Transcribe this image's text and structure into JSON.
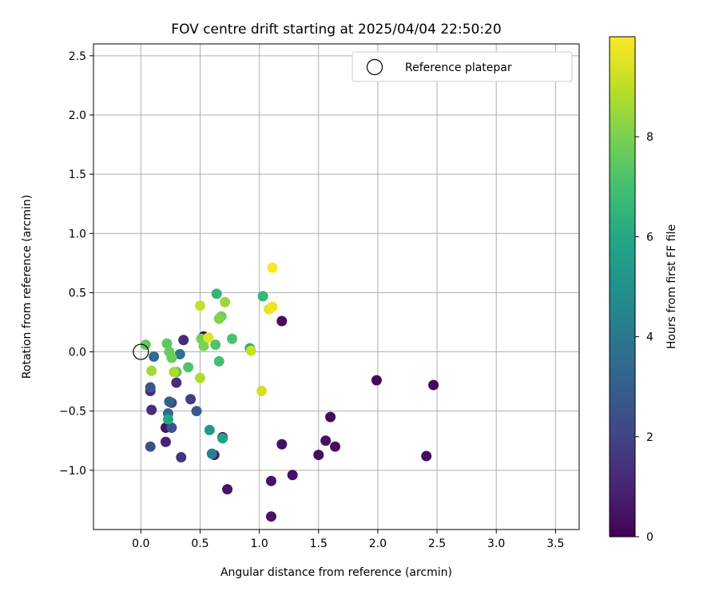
{
  "chart_data": {
    "type": "scatter",
    "title": "FOV centre drift starting at 2025/04/04 22:50:20",
    "xlabel": "Angular distance from reference (arcmin)",
    "ylabel": "Rotation from reference (arcmin)",
    "xlim": [
      -0.4,
      3.7
    ],
    "ylim": [
      -1.5,
      2.6
    ],
    "xticks": [
      0.0,
      0.5,
      1.0,
      1.5,
      2.0,
      2.5,
      3.0,
      3.5
    ],
    "xtick_labels": [
      "0.0",
      "0.5",
      "1.0",
      "1.5",
      "2.0",
      "2.5",
      "3.0",
      "3.5"
    ],
    "yticks": [
      -1.0,
      -0.5,
      0.0,
      0.5,
      1.0,
      1.5,
      2.0,
      2.5
    ],
    "ytick_labels": [
      "−1.0",
      "−0.5",
      "0.0",
      "0.5",
      "1.0",
      "1.5",
      "2.0",
      "2.5"
    ],
    "grid": true,
    "legend": {
      "placement": "top-right",
      "entries": [
        "Reference platepar"
      ]
    },
    "reference_point": {
      "x": 0.0,
      "y": 0.0
    },
    "colorbar": {
      "label": "Hours from first FF file",
      "colormap": "viridis",
      "range": [
        0,
        10
      ],
      "ticks": [
        0,
        2,
        4,
        6,
        8
      ],
      "tick_labels": [
        "0",
        "2",
        "4",
        "6",
        "8"
      ]
    },
    "points": [
      {
        "x": 0.53,
        "y": 0.13,
        "c": 0.3
      },
      {
        "x": 1.19,
        "y": 0.26,
        "c": 0.3
      },
      {
        "x": 1.99,
        "y": -0.24,
        "c": 0.2
      },
      {
        "x": 2.47,
        "y": -0.28,
        "c": 0.2
      },
      {
        "x": 1.6,
        "y": -0.55,
        "c": 0.3
      },
      {
        "x": 1.56,
        "y": -0.75,
        "c": 0.4
      },
      {
        "x": 1.19,
        "y": -0.78,
        "c": 0.4
      },
      {
        "x": 1.64,
        "y": -0.8,
        "c": 0.4
      },
      {
        "x": 1.5,
        "y": -0.87,
        "c": 0.3
      },
      {
        "x": 2.41,
        "y": -0.88,
        "c": 0.3
      },
      {
        "x": 1.28,
        "y": -1.04,
        "c": 0.4
      },
      {
        "x": 1.1,
        "y": -1.09,
        "c": 0.5
      },
      {
        "x": 0.73,
        "y": -1.16,
        "c": 0.5
      },
      {
        "x": 1.1,
        "y": -1.39,
        "c": 0.5
      },
      {
        "x": 0.69,
        "y": -0.72,
        "c": 0.6
      },
      {
        "x": 0.62,
        "y": -0.87,
        "c": 0.7
      },
      {
        "x": 0.21,
        "y": -0.64,
        "c": 0.6
      },
      {
        "x": 0.21,
        "y": -0.76,
        "c": 0.9
      },
      {
        "x": 0.08,
        "y": -0.33,
        "c": 1.2
      },
      {
        "x": 0.09,
        "y": -0.49,
        "c": 1.3
      },
      {
        "x": 0.3,
        "y": -0.26,
        "c": 1.3
      },
      {
        "x": 0.36,
        "y": 0.1,
        "c": 1.3
      },
      {
        "x": 0.34,
        "y": -0.89,
        "c": 1.5
      },
      {
        "x": 0.42,
        "y": -0.4,
        "c": 1.8
      },
      {
        "x": 0.26,
        "y": -0.43,
        "c": 2.0
      },
      {
        "x": 0.08,
        "y": -0.8,
        "c": 2.4
      },
      {
        "x": 0.26,
        "y": -0.64,
        "c": 2.5
      },
      {
        "x": 0.08,
        "y": -0.3,
        "c": 2.7
      },
      {
        "x": 0.47,
        "y": -0.5,
        "c": 2.8
      },
      {
        "x": 0.24,
        "y": -0.42,
        "c": 3.0
      },
      {
        "x": 0.23,
        "y": -0.52,
        "c": 3.3
      },
      {
        "x": 0.11,
        "y": -0.04,
        "c": 3.5
      },
      {
        "x": 0.33,
        "y": -0.02,
        "c": 3.8
      },
      {
        "x": 0.6,
        "y": -0.86,
        "c": 4.3
      },
      {
        "x": 0.58,
        "y": -0.66,
        "c": 5.3
      },
      {
        "x": 0.69,
        "y": -0.73,
        "c": 5.8
      },
      {
        "x": 0.23,
        "y": -0.57,
        "c": 5.9
      },
      {
        "x": 0.92,
        "y": 0.03,
        "c": 6.2
      },
      {
        "x": 0.64,
        "y": 0.49,
        "c": 6.5
      },
      {
        "x": 1.03,
        "y": 0.47,
        "c": 6.6
      },
      {
        "x": 0.66,
        "y": -0.08,
        "c": 6.9
      },
      {
        "x": 0.77,
        "y": 0.11,
        "c": 7.1
      },
      {
        "x": 0.4,
        "y": -0.13,
        "c": 7.2
      },
      {
        "x": 0.63,
        "y": 0.06,
        "c": 7.2
      },
      {
        "x": 0.3,
        "y": -0.17,
        "c": 7.3
      },
      {
        "x": 0.22,
        "y": 0.07,
        "c": 7.4
      },
      {
        "x": 0.04,
        "y": 0.06,
        "c": 7.5
      },
      {
        "x": 0.24,
        "y": 0.0,
        "c": 7.6
      },
      {
        "x": 0.26,
        "y": -0.05,
        "c": 7.7
      },
      {
        "x": 0.68,
        "y": 0.3,
        "c": 7.8
      },
      {
        "x": 0.51,
        "y": 0.11,
        "c": 7.9
      },
      {
        "x": 0.53,
        "y": 0.05,
        "c": 8.0
      },
      {
        "x": 0.66,
        "y": 0.28,
        "c": 8.1
      },
      {
        "x": 0.71,
        "y": 0.42,
        "c": 8.5
      },
      {
        "x": 0.09,
        "y": -0.16,
        "c": 8.6
      },
      {
        "x": 0.28,
        "y": -0.17,
        "c": 8.7
      },
      {
        "x": 0.5,
        "y": -0.22,
        "c": 8.8
      },
      {
        "x": 0.5,
        "y": 0.39,
        "c": 9.1
      },
      {
        "x": 0.93,
        "y": 0.01,
        "c": 9.2
      },
      {
        "x": 1.02,
        "y": -0.33,
        "c": 9.3
      },
      {
        "x": 0.57,
        "y": 0.12,
        "c": 9.5
      },
      {
        "x": 1.08,
        "y": 0.36,
        "c": 9.6
      },
      {
        "x": 1.11,
        "y": 0.38,
        "c": 9.8
      },
      {
        "x": 1.11,
        "y": 0.71,
        "c": 9.9
      }
    ]
  }
}
